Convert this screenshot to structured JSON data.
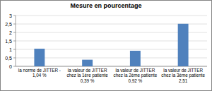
{
  "chart_data": {
    "type": "bar",
    "title": "Mesure en pourcentage",
    "categories": [
      "la norme de JITTER - 1,04 %",
      "la valeur de JITTER chez la 1ère patiente 0,39 %",
      "la valeur de JITTER chez la 2ème patiente 0,92 %",
      "la valeur de JITTER chez la 3ème patiente 2,51"
    ],
    "values": [
      1.04,
      0.39,
      0.92,
      2.51
    ],
    "color": "#4f81bd",
    "ylim": [
      0,
      3
    ],
    "yticks": [
      0,
      {
        "value": 0.5,
        "label": "0,5"
      },
      1,
      {
        "value": 1.5,
        "label": "1,5"
      },
      2,
      {
        "value": 2.5,
        "label": "2,5"
      },
      3
    ],
    "grid": true
  }
}
